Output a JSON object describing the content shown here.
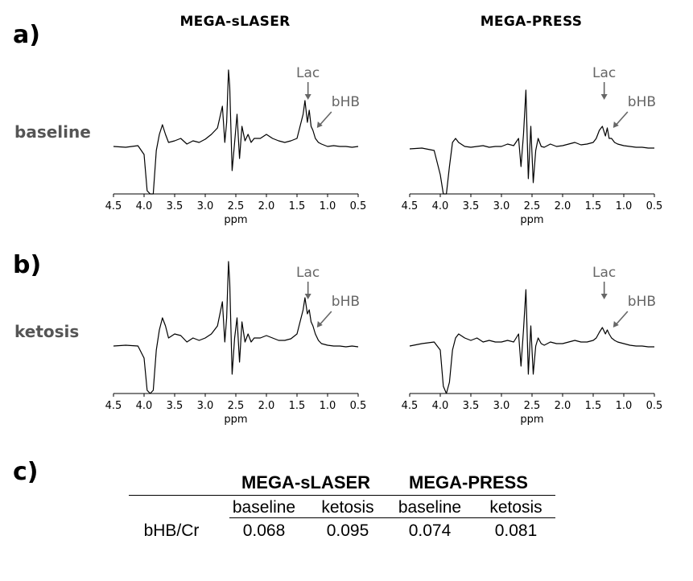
{
  "panel_labels": [
    "a)",
    "b)",
    "c)"
  ],
  "column_titles": [
    "MEGA-sLASER",
    "MEGA-PRESS"
  ],
  "row_labels": [
    "baseline",
    "ketosis"
  ],
  "colors": {
    "spectrum": "#000000",
    "annotation": "#666666",
    "row_label": "#555555"
  },
  "chart_data": [
    {
      "type": "line",
      "sequence": "MEGA-sLASER",
      "condition": "baseline",
      "xlabel": "ppm",
      "xlim": [
        4.5,
        0.5
      ],
      "x_inverted": true,
      "xticks": [
        "4.5",
        "4.0",
        "3.5",
        "3.0",
        "2.5",
        "2.0",
        "1.5",
        "1.0",
        "0.5"
      ],
      "annotations": [
        {
          "label": "Lac",
          "ppm": 1.32
        },
        {
          "label": "bHB",
          "ppm": 1.2
        }
      ],
      "series": [
        {
          "x": [
            4.5,
            4.3,
            4.1,
            4.0,
            3.95,
            3.9,
            3.85,
            3.8,
            3.75,
            3.7,
            3.65,
            3.6,
            3.5,
            3.4,
            3.3,
            3.2,
            3.1,
            3.0,
            2.9,
            2.8,
            2.72,
            2.68,
            2.65,
            2.62,
            2.6,
            2.56,
            2.52,
            2.48,
            2.44,
            2.4,
            2.35,
            2.3,
            2.25,
            2.2,
            2.1,
            2.0,
            1.9,
            1.8,
            1.7,
            1.6,
            1.5,
            1.45,
            1.4,
            1.37,
            1.33,
            1.3,
            1.27,
            1.24,
            1.2,
            1.15,
            1.1,
            1.0,
            0.9,
            0.8,
            0.7,
            0.6,
            0.5
          ],
          "y": [
            0.05,
            0.04,
            0.06,
            -0.05,
            -0.5,
            -0.9,
            -0.6,
            0.0,
            0.2,
            0.32,
            0.2,
            0.1,
            0.12,
            0.15,
            0.08,
            0.12,
            0.1,
            0.14,
            0.2,
            0.28,
            0.55,
            0.1,
            0.35,
            1.0,
            0.8,
            -0.25,
            0.1,
            0.45,
            -0.1,
            0.3,
            0.12,
            0.2,
            0.1,
            0.15,
            0.15,
            0.2,
            0.15,
            0.12,
            0.1,
            0.12,
            0.15,
            0.3,
            0.45,
            0.62,
            0.35,
            0.5,
            0.3,
            0.25,
            0.15,
            0.1,
            0.08,
            0.05,
            0.06,
            0.05,
            0.05,
            0.04,
            0.05
          ]
        }
      ]
    },
    {
      "type": "line",
      "sequence": "MEGA-PRESS",
      "condition": "baseline",
      "xlabel": "ppm",
      "xlim": [
        4.5,
        0.5
      ],
      "x_inverted": true,
      "xticks": [
        "4.5",
        "4.0",
        "3.5",
        "3.0",
        "2.5",
        "2.0",
        "1.5",
        "1.0",
        "0.5"
      ],
      "annotations": [
        {
          "label": "Lac",
          "ppm": 1.32
        },
        {
          "label": "bHB",
          "ppm": 1.2
        }
      ],
      "series": [
        {
          "x": [
            4.5,
            4.3,
            4.1,
            4.0,
            3.95,
            3.9,
            3.85,
            3.8,
            3.75,
            3.7,
            3.6,
            3.5,
            3.4,
            3.3,
            3.2,
            3.1,
            3.0,
            2.9,
            2.8,
            2.72,
            2.68,
            2.64,
            2.6,
            2.56,
            2.52,
            2.48,
            2.44,
            2.4,
            2.35,
            2.3,
            2.2,
            2.1,
            2.0,
            1.9,
            1.8,
            1.7,
            1.6,
            1.5,
            1.45,
            1.4,
            1.35,
            1.3,
            1.27,
            1.24,
            1.2,
            1.15,
            1.1,
            1.0,
            0.9,
            0.8,
            0.7,
            0.6,
            0.5
          ],
          "y": [
            0.02,
            0.03,
            0.0,
            -0.3,
            -0.85,
            -0.6,
            -0.2,
            0.1,
            0.15,
            0.1,
            0.05,
            0.04,
            0.05,
            0.06,
            0.04,
            0.05,
            0.05,
            0.08,
            0.06,
            0.15,
            -0.2,
            0.2,
            0.75,
            -0.35,
            0.3,
            -0.4,
            0.0,
            0.15,
            0.05,
            0.04,
            0.08,
            0.05,
            0.06,
            0.08,
            0.1,
            0.07,
            0.08,
            0.1,
            0.15,
            0.25,
            0.3,
            0.18,
            0.28,
            0.15,
            0.15,
            0.1,
            0.08,
            0.06,
            0.05,
            0.04,
            0.04,
            0.03,
            0.03
          ]
        }
      ]
    },
    {
      "type": "line",
      "sequence": "MEGA-sLASER",
      "condition": "ketosis",
      "xlabel": "ppm",
      "xlim": [
        4.5,
        0.5
      ],
      "x_inverted": true,
      "xticks": [
        "4.5",
        "4.0",
        "3.5",
        "3.0",
        "2.5",
        "2.0",
        "1.5",
        "1.0",
        "0.5"
      ],
      "annotations": [
        {
          "label": "Lac",
          "ppm": 1.32
        },
        {
          "label": "bHB",
          "ppm": 1.2
        }
      ],
      "series": [
        {
          "x": [
            4.5,
            4.3,
            4.1,
            4.0,
            3.95,
            3.9,
            3.85,
            3.8,
            3.75,
            3.7,
            3.65,
            3.6,
            3.5,
            3.4,
            3.3,
            3.2,
            3.1,
            3.0,
            2.9,
            2.8,
            2.72,
            2.68,
            2.65,
            2.62,
            2.6,
            2.56,
            2.52,
            2.48,
            2.44,
            2.4,
            2.35,
            2.3,
            2.25,
            2.2,
            2.1,
            2.0,
            1.9,
            1.8,
            1.7,
            1.6,
            1.5,
            1.45,
            1.4,
            1.37,
            1.33,
            1.3,
            1.27,
            1.24,
            1.2,
            1.15,
            1.1,
            1.0,
            0.9,
            0.8,
            0.7,
            0.6,
            0.5
          ],
          "y": [
            0.05,
            0.06,
            0.05,
            -0.1,
            -0.5,
            -0.85,
            -0.5,
            0.0,
            0.25,
            0.4,
            0.3,
            0.15,
            0.2,
            0.18,
            0.1,
            0.15,
            0.12,
            0.15,
            0.2,
            0.3,
            0.6,
            0.1,
            0.4,
            1.1,
            0.85,
            -0.3,
            0.15,
            0.4,
            -0.15,
            0.35,
            0.1,
            0.2,
            0.1,
            0.15,
            0.15,
            0.18,
            0.15,
            0.12,
            0.12,
            0.14,
            0.2,
            0.35,
            0.5,
            0.65,
            0.45,
            0.5,
            0.35,
            0.3,
            0.2,
            0.12,
            0.08,
            0.06,
            0.05,
            0.05,
            0.04,
            0.05,
            0.04
          ]
        }
      ]
    },
    {
      "type": "line",
      "sequence": "MEGA-PRESS",
      "condition": "ketosis",
      "xlabel": "ppm",
      "xlim": [
        4.5,
        0.5
      ],
      "x_inverted": true,
      "xticks": [
        "4.5",
        "4.0",
        "3.5",
        "3.0",
        "2.5",
        "2.0",
        "1.5",
        "1.0",
        "0.5"
      ],
      "annotations": [
        {
          "label": "Lac",
          "ppm": 1.32
        },
        {
          "label": "bHB",
          "ppm": 1.2
        }
      ],
      "series": [
        {
          "x": [
            4.5,
            4.3,
            4.1,
            4.0,
            3.95,
            3.9,
            3.85,
            3.8,
            3.75,
            3.7,
            3.6,
            3.5,
            3.4,
            3.3,
            3.2,
            3.1,
            3.0,
            2.9,
            2.8,
            2.72,
            2.68,
            2.64,
            2.6,
            2.56,
            2.52,
            2.48,
            2.44,
            2.4,
            2.35,
            2.3,
            2.2,
            2.1,
            2.0,
            1.9,
            1.8,
            1.7,
            1.6,
            1.5,
            1.45,
            1.4,
            1.35,
            1.3,
            1.27,
            1.24,
            1.2,
            1.15,
            1.1,
            1.0,
            0.9,
            0.8,
            0.7,
            0.6,
            0.5
          ],
          "y": [
            0.05,
            0.08,
            0.1,
            0.0,
            -0.45,
            -0.7,
            -0.4,
            0.0,
            0.15,
            0.2,
            0.15,
            0.12,
            0.15,
            0.1,
            0.12,
            0.1,
            0.1,
            0.12,
            0.1,
            0.2,
            -0.2,
            0.25,
            0.75,
            -0.3,
            0.3,
            -0.3,
            0.05,
            0.15,
            0.08,
            0.06,
            0.1,
            0.08,
            0.08,
            0.1,
            0.12,
            0.1,
            0.1,
            0.12,
            0.15,
            0.22,
            0.28,
            0.2,
            0.25,
            0.2,
            0.15,
            0.12,
            0.1,
            0.08,
            0.06,
            0.05,
            0.05,
            0.04,
            0.04
          ]
        }
      ]
    },
    {
      "type": "table",
      "group_headers": [
        "MEGA-sLASER",
        "MEGA-PRESS"
      ],
      "column_headers": [
        "baseline",
        "ketosis",
        "baseline",
        "ketosis"
      ],
      "rows": [
        {
          "label": "bHB/Cr",
          "values": [
            "0.068",
            "0.095",
            "0.074",
            "0.081"
          ]
        }
      ]
    }
  ]
}
